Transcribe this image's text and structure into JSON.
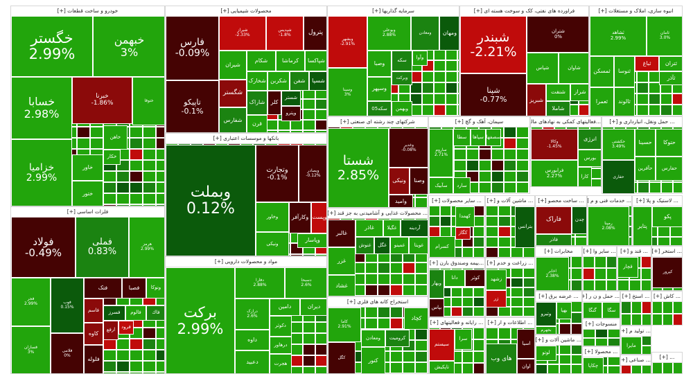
{
  "colors": {
    "g1": "#22a50c",
    "g2": "#1b8311",
    "g3": "#0b5a0b",
    "r1": "#c00b0b",
    "r2": "#8b0a0a",
    "r3": "#450303"
  },
  "sectors": [
    {
      "title": "خودرو و ساخت قطعات [+]",
      "tiles": [
        {
          "s": "خگستر",
          "c": "2.99%",
          "t": "g1"
        },
        {
          "s": "خبهمن",
          "c": "3%",
          "t": "g1"
        },
        {
          "s": "خسابا",
          "c": "2.98%",
          "t": "g1"
        },
        {
          "s": "خبرنا",
          "c": "-1.86%",
          "t": "r2"
        },
        {
          "s": "خزامیا",
          "c": "2.99%",
          "t": "g1"
        },
        {
          "s": "ختوقا",
          "c": "",
          "t": "g1"
        },
        {
          "s": "خاور",
          "c": "",
          "t": "g1"
        },
        {
          "s": "ختور",
          "c": "",
          "t": "g1"
        },
        {
          "s": "خکار",
          "c": "",
          "t": "g1"
        },
        {
          "s": "خاهن",
          "c": "",
          "t": "g1"
        }
      ]
    },
    {
      "title": "فلزات اساسی [+]",
      "tiles": [
        {
          "s": "فولاد",
          "c": "-0.49%",
          "t": "r3"
        },
        {
          "s": "فملی",
          "c": "0.83%",
          "t": "g2"
        },
        {
          "s": "هرمز",
          "c": "2.99%",
          "t": "g1"
        },
        {
          "s": "فجر",
          "c": "2.99%",
          "t": "g1"
        },
        {
          "s": "فسازان",
          "c": "3%",
          "t": "g1"
        },
        {
          "s": "فوب",
          "c": "0.15%",
          "t": "g3"
        },
        {
          "s": "فلامی",
          "c": "0%",
          "t": "r3"
        },
        {
          "s": "فتک",
          "c": "",
          "t": "r3"
        },
        {
          "s": "فصبا",
          "c": "",
          "t": "r3"
        },
        {
          "s": "ونوکا",
          "c": "",
          "t": "g1"
        },
        {
          "s": "فاسم",
          "c": "",
          "t": "r2"
        },
        {
          "s": "کاوه",
          "c": "",
          "t": "r2"
        },
        {
          "s": "فلوله",
          "c": "",
          "t": "r3"
        },
        {
          "s": "فسرز",
          "c": "",
          "t": "g3"
        },
        {
          "s": "فالوم",
          "c": "",
          "t": "g1"
        },
        {
          "s": "فاك",
          "c": "",
          "t": "g2"
        },
        {
          "s": "ارفع",
          "c": "",
          "t": "r2"
        },
        {
          "s": "فرود",
          "c": "",
          "t": "r1"
        }
      ]
    },
    {
      "title": "محصولات شیمیایی [+]",
      "tiles": [
        {
          "s": "فارس",
          "c": "-0.09%",
          "t": "r3"
        },
        {
          "s": "تاپیکو",
          "c": "-0.1%",
          "t": "r3"
        },
        {
          "s": "شیراز",
          "c": "-2.33%",
          "t": "r1"
        },
        {
          "s": "شپدیس",
          "c": "-1.8%",
          "t": "r1"
        },
        {
          "s": "پترول",
          "c": "",
          "t": "r3"
        },
        {
          "s": "شیران",
          "c": "",
          "t": "g1"
        },
        {
          "s": "شکام",
          "c": "",
          "t": "g1"
        },
        {
          "s": "کرماشا",
          "c": "",
          "t": "g1"
        },
        {
          "s": "شپاکسا",
          "c": "",
          "t": "g1"
        },
        {
          "s": "شخارک",
          "c": "",
          "t": "g1"
        },
        {
          "s": "شکربن",
          "c": "",
          "t": "g1"
        },
        {
          "s": "شفن",
          "c": "",
          "t": "g2"
        },
        {
          "s": "شسپا",
          "c": "",
          "t": "g3"
        },
        {
          "s": "شگستر",
          "c": "",
          "t": "r2"
        },
        {
          "s": "شفارس",
          "c": "",
          "t": "g2"
        },
        {
          "s": "شاراک",
          "c": "",
          "t": "g2"
        },
        {
          "s": "قرن",
          "c": "",
          "t": "g1"
        },
        {
          "s": "کلر",
          "c": "",
          "t": "r3"
        },
        {
          "s": "شستر",
          "c": "",
          "t": "g3"
        },
        {
          "s": "وپترو",
          "c": "",
          "t": "r3"
        }
      ]
    },
    {
      "title": "بانکها و موسسات اعتباری [+]",
      "tiles": [
        {
          "s": "وبملت",
          "c": "0.12%",
          "t": "g3"
        },
        {
          "s": "وتجارت",
          "c": "-0.1%",
          "t": "r3"
        },
        {
          "s": "وبصادر",
          "c": "-0.12%",
          "t": "r3"
        },
        {
          "s": "وخاور",
          "c": "",
          "t": "g1"
        },
        {
          "s": "ونیکی",
          "c": "",
          "t": "g1"
        },
        {
          "s": "وکارآفر",
          "c": "",
          "t": "r3"
        },
        {
          "s": "وپست",
          "c": "",
          "t": "r1"
        },
        {
          "s": "وپاسار",
          "c": "",
          "t": "g1"
        }
      ]
    },
    {
      "title": "مواد و محصولات دارویی [+]",
      "tiles": [
        {
          "s": "برکت",
          "c": "2.99%",
          "t": "g1"
        },
        {
          "s": "دفارا",
          "c": "2.88%",
          "t": "g1"
        },
        {
          "s": "دسبحا",
          "c": "2.6%",
          "t": "g1"
        },
        {
          "s": "درازک",
          "c": "2.6%",
          "t": "g1"
        },
        {
          "s": "دامین",
          "c": "",
          "t": "g1"
        },
        {
          "s": "دیران",
          "c": "",
          "t": "g1"
        },
        {
          "s": "داوه",
          "c": "",
          "t": "g1"
        },
        {
          "s": "دعبید",
          "c": "",
          "t": "g1"
        },
        {
          "s": "دکوثر",
          "c": "",
          "t": "g1"
        },
        {
          "s": "درهاور",
          "c": "",
          "t": "g1"
        },
        {
          "s": "هجرت",
          "c": "",
          "t": "g1"
        }
      ]
    },
    {
      "title": "سرمایه گذاریها [+]",
      "tiles": [
        {
          "s": "وبشهر",
          "c": "-2.91%",
          "t": "r1"
        },
        {
          "s": "وسینا",
          "c": "3%",
          "t": "g1"
        },
        {
          "s": "وبوعلی",
          "c": "2.88%",
          "t": "g1"
        },
        {
          "s": "ومعادن",
          "c": "",
          "t": "g2"
        },
        {
          "s": "ومهان",
          "c": "",
          "t": "g3"
        },
        {
          "s": "وصبا",
          "c": "",
          "t": "g1"
        },
        {
          "s": "سکه",
          "c": "",
          "t": "g2"
        },
        {
          "s": "وآوا",
          "c": "",
          "t": "g1"
        },
        {
          "s": "وبرکت",
          "c": "",
          "t": "g2"
        },
        {
          "s": "وسپهر",
          "c": "",
          "t": "g1"
        },
        {
          "s": "سکه05",
          "c": "",
          "t": "g2"
        },
        {
          "s": "وبهمن",
          "c": "",
          "t": "g1"
        }
      ]
    },
    {
      "title": "فراورده های نفتی، کک و سوخت هسته ای [+]",
      "tiles": [
        {
          "s": "شبندر",
          "c": "-2.21%",
          "t": "r1"
        },
        {
          "s": "شپنا",
          "c": "-0.77%",
          "t": "r3"
        },
        {
          "s": "شتران",
          "c": "0%",
          "t": "r3"
        },
        {
          "s": "شپاس",
          "c": "",
          "t": "g1"
        },
        {
          "s": "شاوان",
          "c": "",
          "t": "g1"
        },
        {
          "s": "شبریز",
          "c": "",
          "t": "r2"
        },
        {
          "s": "شنفت",
          "c": "",
          "t": "g1"
        },
        {
          "s": "شراز",
          "c": "",
          "t": "g1"
        },
        {
          "s": "شاملا",
          "c": "",
          "t": "g2"
        }
      ]
    },
    {
      "title": "انبوه سازی، املاک و مستغلات [+]",
      "tiles": [
        {
          "s": "ثشاهد",
          "c": "2.99%",
          "t": "g1"
        },
        {
          "s": "ثامان",
          "c": "3.0%",
          "t": "g1"
        },
        {
          "s": "ثمسکن",
          "c": "",
          "t": "g1"
        },
        {
          "s": "ثنوسا",
          "c": "",
          "t": "g1"
        },
        {
          "s": "ثباغ",
          "c": "",
          "t": "r1"
        },
        {
          "s": "ثتران",
          "c": "",
          "t": "g1"
        },
        {
          "s": "ثآذر",
          "c": "",
          "t": "g1"
        },
        {
          "s": "ثعمرا",
          "c": "",
          "t": "g1"
        },
        {
          "s": "ثالوند",
          "c": "",
          "t": "g1"
        }
      ]
    },
    {
      "title": "شرکتهای چند رشته ای صنعتی [+]",
      "tiles": [
        {
          "s": "شستا",
          "c": "2.85%",
          "t": "g1"
        },
        {
          "s": "وغدیر",
          "c": "-0.08%",
          "t": "r3"
        },
        {
          "s": "ونیکی",
          "c": "",
          "t": "r2"
        },
        {
          "s": "وصنا",
          "c": "",
          "t": "r3"
        },
        {
          "s": "واميد",
          "c": "",
          "t": "r3"
        }
      ]
    },
    {
      "title": "سیمان، آهک و گچ [+]",
      "tiles": [
        {
          "s": "ساروم",
          "c": "2.71%",
          "t": "g1"
        },
        {
          "s": "سطا",
          "c": "",
          "t": "g1"
        },
        {
          "s": "سپاها",
          "c": "",
          "t": "g1"
        },
        {
          "s": "سصفها",
          "c": "",
          "t": "g1"
        },
        {
          "s": "سآبیک",
          "c": "",
          "t": "g1"
        },
        {
          "s": "سارد",
          "c": "",
          "t": "g1"
        }
      ]
    },
    {
      "title": "...فعالیتهای کمکی به نهادهای مالی [+]",
      "tiles": [
        {
          "s": "وکالا",
          "c": "-1.45%",
          "t": "r2"
        },
        {
          "s": "فرابورس",
          "c": "2.27%",
          "t": "g1"
        },
        {
          "s": "انرژی",
          "c": "",
          "t": "g2"
        },
        {
          "s": "بورس",
          "c": "",
          "t": "g1"
        },
        {
          "s": "کارا",
          "c": "",
          "t": "g1"
        }
      ]
    },
    {
      "title": "... حمل ونقل، انبارداری و [+]",
      "tiles": [
        {
          "s": "حکشتی",
          "c": "3.49%",
          "t": "g1"
        },
        {
          "s": "حسینا",
          "c": "",
          "t": "g1"
        },
        {
          "s": "حتوکا",
          "c": "",
          "t": "g1"
        },
        {
          "s": "حآفرین",
          "c": "",
          "t": "g1"
        },
        {
          "s": "حفارس",
          "c": "",
          "t": "g1"
        },
        {
          "s": "حفاری",
          "c": "",
          "t": "g3"
        }
      ]
    },
    {
      "title": "... محصولات غذایی و آشامیدنی به جز قند [+]",
      "tiles": [
        {
          "s": "غالبر",
          "c": "",
          "t": "r3"
        },
        {
          "s": "غزر",
          "c": "",
          "t": "g1"
        },
        {
          "s": "غشاد",
          "c": "",
          "t": "g1"
        },
        {
          "s": "غاذر",
          "c": "",
          "t": "g1"
        },
        {
          "s": "غگیلا",
          "c": "",
          "t": "g1"
        },
        {
          "s": "آردینه",
          "c": "",
          "t": "g3"
        },
        {
          "s": "غنوش",
          "c": "",
          "t": "g2"
        },
        {
          "s": "غگل",
          "c": "",
          "t": "g3"
        },
        {
          "s": "غمینو",
          "c": "",
          "t": "g1"
        },
        {
          "s": "غویتا",
          "c": "",
          "t": "g1"
        }
      ]
    },
    {
      "title": "استخراج کانه های فلزی [+]",
      "tiles": [
        {
          "s": "کاما",
          "c": "2.91%",
          "t": "g1"
        },
        {
          "s": "کچاد",
          "c": "",
          "t": "g1"
        },
        {
          "s": "کرومیت",
          "c": "",
          "t": "g2"
        },
        {
          "s": "ومعادن",
          "c": "",
          "t": "g1"
        },
        {
          "s": "کگل",
          "c": "",
          "t": "r3"
        },
        {
          "s": "کنور",
          "c": "",
          "t": "g1"
        }
      ]
    },
    {
      "title": "... سایر محصولات [+]",
      "tiles": [
        {
          "s": "کهمدا",
          "c": "",
          "t": "g1"
        },
        {
          "s": "کگاز",
          "c": "",
          "t": "r1"
        },
        {
          "s": "کسرام",
          "c": "",
          "t": "g1"
        }
      ]
    },
    {
      "title": "...بیمه وصندوق بازن [+]",
      "tiles": [
        {
          "s": "وبهار",
          "c": "",
          "t": "g2"
        },
        {
          "s": "دانا",
          "c": "",
          "t": "g1"
        },
        {
          "s": "کوثر",
          "c": "",
          "t": "r3"
        },
        {
          "s": "بپاس",
          "c": "",
          "t": "r3"
        }
      ]
    },
    {
      "title": "... رایانه و فعالیتهای [+]",
      "tiles": [
        {
          "s": "سیستم",
          "c": "",
          "t": "r1"
        },
        {
          "s": "سرا",
          "c": "",
          "t": "g1"
        },
        {
          "s": "تاپکیش",
          "c": "",
          "t": "g1"
        }
      ]
    },
    {
      "title": "... ماشین آلات و [+]",
      "tiles": [
        {
          "s": "بترانس",
          "c": "",
          "t": "g3"
        }
      ]
    },
    {
      "title": "... زراعت و خدم [+]",
      "tiles": [
        {
          "s": "زشهد",
          "c": "",
          "t": "g1"
        },
        {
          "s": "زر",
          "c": "",
          "t": "r1"
        }
      ]
    },
    {
      "title": "... اطلاعات و ار [+]",
      "tiles": [
        {
          "s": "های وب",
          "c": "",
          "t": "g2"
        },
        {
          "s": "اسیا",
          "c": "",
          "t": "r3"
        },
        {
          "s": "اوان",
          "c": "",
          "t": "r3"
        }
      ]
    },
    {
      "title": "... ساخت محصو [+]",
      "tiles": [
        {
          "s": "فاراک",
          "c": "",
          "t": "r2"
        },
        {
          "s": "چدن",
          "c": "",
          "t": "g3"
        },
        {
          "s": "فاذر",
          "c": "",
          "t": "g2"
        }
      ]
    },
    {
      "title": "... خدمات فنی و م [+]",
      "tiles": [
        {
          "s": "رمپنا",
          "c": "2.08%",
          "t": "g1"
        }
      ]
    },
    {
      "title": "... لاستیک و پلا [+]",
      "tiles": [
        {
          "s": "پتایر",
          "c": "",
          "t": "g1"
        },
        {
          "s": "پکو",
          "c": "",
          "t": "g1"
        }
      ]
    },
    {
      "title": "مخابرات [+]",
      "tiles": [
        {
          "s": "اخابر",
          "c": "2.38%",
          "t": "g1"
        }
      ]
    },
    {
      "title": "... سایر وا [+]",
      "tiles": []
    },
    {
      "title": "... قند و [+]",
      "tiles": [
        {
          "s": "قچار",
          "c": "",
          "t": "g1"
        }
      ]
    },
    {
      "title": "... استخر [+]",
      "tiles": [
        {
          "s": "کپرور",
          "c": "",
          "t": "r3"
        }
      ]
    },
    {
      "title": "... عرضه برق [+]",
      "tiles": [
        {
          "s": "وتیرو",
          "c": "",
          "t": "g3"
        },
        {
          "s": "بهپا",
          "c": "",
          "t": "g1"
        },
        {
          "s": "بجهرم",
          "c": "",
          "t": "g1"
        }
      ]
    },
    {
      "title": "... حمل و ن ر [+]",
      "tiles": [
        {
          "s": "گنگا",
          "c": "",
          "t": "g1"
        },
        {
          "s": "سگا",
          "c": "",
          "t": "g1"
        }
      ]
    },
    {
      "title": "... استخ [+]",
      "tiles": []
    },
    {
      "title": "... کاش [+]",
      "tiles": []
    },
    {
      "title": "... ماشین آلات و [+]",
      "tiles": [
        {
          "s": "لوتو",
          "c": "",
          "t": "g1"
        }
      ]
    },
    {
      "title": "منسوجات [+]",
      "tiles": []
    },
    {
      "title": "... تولید م [+]",
      "tiles": [
        {
          "s": "مایرا",
          "c": "",
          "t": "g1"
        }
      ]
    },
    {
      "title": "... محصولا [+]",
      "tiles": [
        {
          "s": "چکاپا",
          "c": "",
          "t": "g1"
        }
      ]
    },
    {
      "title": "... صناعی [+]",
      "tiles": []
    },
    {
      "title": "... [+]",
      "tiles": []
    }
  ]
}
